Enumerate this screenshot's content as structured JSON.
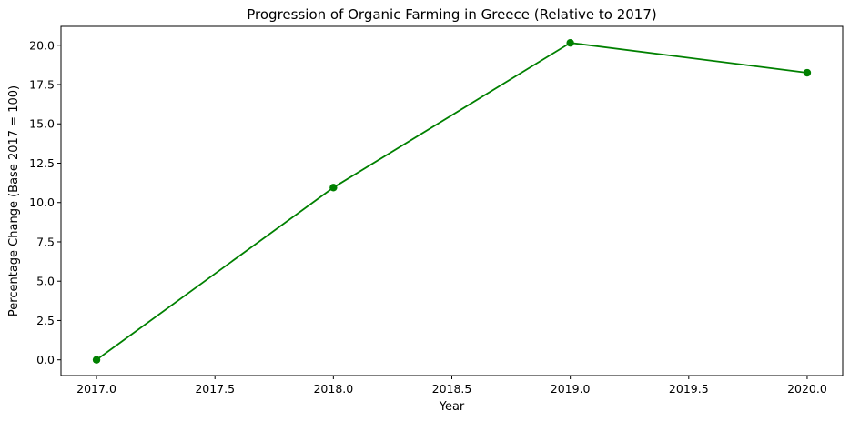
{
  "chart_data": {
    "type": "line",
    "title": "Progression of Organic Farming in Greece (Relative to 2017)",
    "xlabel": "Year",
    "ylabel": "Percentage Change (Base 2017 = 100)",
    "x": [
      2017,
      2018,
      2019,
      2020
    ],
    "series": [
      {
        "values": [
          0.0,
          10.95,
          20.15,
          18.25
        ],
        "color": "#008000",
        "marker": "circle"
      }
    ],
    "xlim": [
      2016.85,
      2020.15
    ],
    "ylim": [
      -1.0,
      21.2
    ],
    "xticks": [
      "2017.0",
      "2017.5",
      "2018.0",
      "2018.5",
      "2019.0",
      "2019.5",
      "2020.0"
    ],
    "yticks": [
      "0.0",
      "2.5",
      "5.0",
      "7.5",
      "10.0",
      "12.5",
      "15.0",
      "17.5",
      "20.0"
    ],
    "grid": false,
    "legend": false
  }
}
